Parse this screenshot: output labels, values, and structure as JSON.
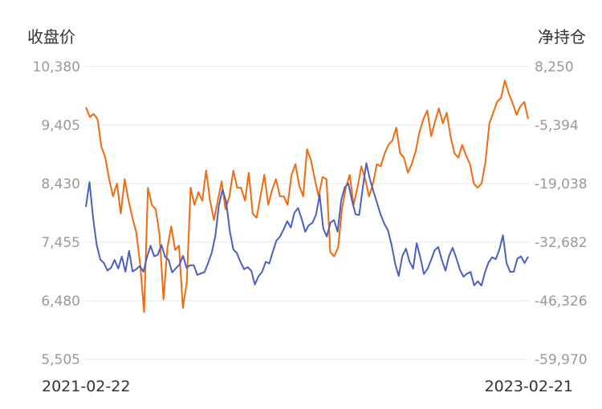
{
  "chart_data": {
    "type": "line",
    "title": "",
    "y_left": {
      "label": "收盘价",
      "ticks": [
        "10,380",
        "9,405",
        "8,430",
        "7,455",
        "6,480",
        "5,505"
      ],
      "range": [
        5505,
        10380
      ]
    },
    "y_right": {
      "label": "净持仓",
      "ticks": [
        "8,250",
        "-5,394",
        "-19,038",
        "-32,682",
        "-46,326",
        "-59,970"
      ],
      "range": [
        -59970,
        8250
      ]
    },
    "x": {
      "start_label": "2021-02-22",
      "end_label": "2023-02-21"
    },
    "grid": true,
    "series": [
      {
        "axis": "left",
        "color": "#4a5fc1",
        "values": [
          8043,
          8455,
          7858,
          7415,
          7167,
          7110,
          6982,
          7030,
          7160,
          7016,
          7215,
          6964,
          7312,
          6967,
          7005,
          7058,
          6962,
          7212,
          7395,
          7218,
          7247,
          7407,
          7214,
          7161,
          6951,
          7020,
          7078,
          7228,
          7028,
          7072,
          7070,
          6909,
          6937,
          6955,
          7110,
          7280,
          7560,
          8070,
          8330,
          8135,
          7650,
          7332,
          7275,
          7125,
          7005,
          7040,
          6978,
          6750,
          6888,
          6959,
          7129,
          7100,
          7300,
          7480,
          7550,
          7672,
          7805,
          7698,
          7945,
          8025,
          7845,
          7628,
          7738,
          7775,
          7912,
          8245,
          7685,
          7548,
          7780,
          7825,
          7628,
          8152,
          8370,
          8432,
          8150,
          7920,
          7908,
          8358,
          8770,
          8502,
          8296,
          8103,
          7910,
          7762,
          7655,
          7412,
          7100,
          6892,
          7220,
          7350,
          7132,
          7015,
          7438,
          7205,
          6925,
          7010,
          7155,
          7320,
          7375,
          7158,
          6978,
          7225,
          7362,
          7195,
          7000,
          6880,
          6932,
          6958,
          6735,
          6805,
          6732,
          6950,
          7120,
          7205,
          7170,
          7335,
          7570,
          7105,
          6960,
          6965,
          7180,
          7220,
          7108,
          7215
        ]
      },
      {
        "axis": "right",
        "color": "#f06a0f",
        "values": [
          -1200,
          -3500,
          -2800,
          -4000,
          -10400,
          -13000,
          -18000,
          -22000,
          -19000,
          -26000,
          -18000,
          -23000,
          -27000,
          -30500,
          -38000,
          -49000,
          -20000,
          -24000,
          -25000,
          -31000,
          -46000,
          -34000,
          -29000,
          -34500,
          -33500,
          -48000,
          -42000,
          -20000,
          -24000,
          -21000,
          -23000,
          -16000,
          -23000,
          -27500,
          -23000,
          -18500,
          -25000,
          -22000,
          -16000,
          -20000,
          -20000,
          -23000,
          -16500,
          -26000,
          -27000,
          -22000,
          -17000,
          -24000,
          -20500,
          -18000,
          -22000,
          -22000,
          -24000,
          -17000,
          -14500,
          -19500,
          -22000,
          -11000,
          -13500,
          -18000,
          -22000,
          -17500,
          -18000,
          -35000,
          -36000,
          -34000,
          -25000,
          -20000,
          -17000,
          -24000,
          -20000,
          -15000,
          -18000,
          -22000,
          -19000,
          -14500,
          -15000,
          -12000,
          -10000,
          -9000,
          -6000,
          -12000,
          -13000,
          -16500,
          -14500,
          -11500,
          -7000,
          -4000,
          -2000,
          -8000,
          -4500,
          -1500,
          -5000,
          -2500,
          -8000,
          -12000,
          -13000,
          -10000,
          -12500,
          -14500,
          -19000,
          -20000,
          -19000,
          -14000,
          -5000,
          -2500,
          0,
          1000,
          5000,
          2000,
          -300,
          -3000,
          -1000,
          0,
          -4000
        ]
      }
    ]
  }
}
